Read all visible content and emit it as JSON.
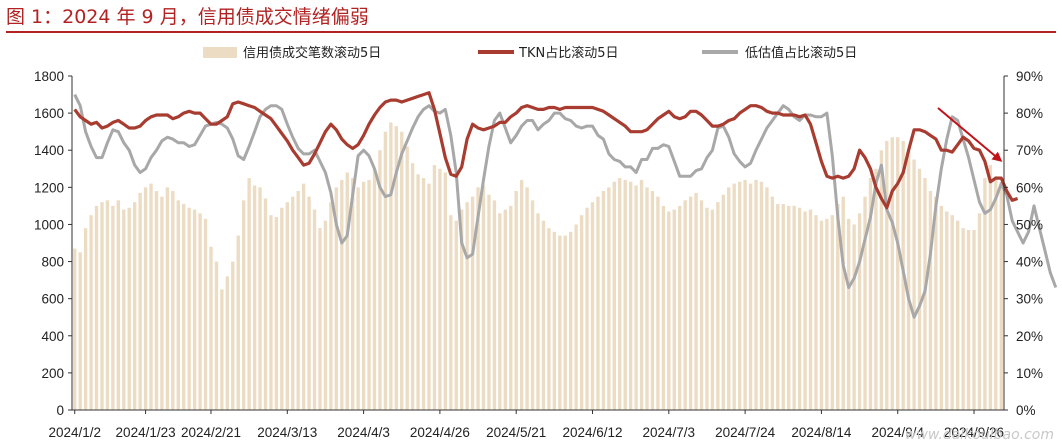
{
  "title": "图 1：2024 年 9 月，信用债成交情绪偏弱",
  "watermark": "www.dalkoulbao.com",
  "colors": {
    "bar": "#eddcc4",
    "tkn": "#a83c30",
    "low": "#a8a8a8",
    "title": "#b22222",
    "arrow": "#c0141a"
  },
  "chart_data": {
    "type": "bar+line",
    "title": "图 1：2024 年 9 月，信用债成交情绪偏弱",
    "legend": {
      "placement": "top",
      "entries": [
        "信用债成交笔数滚动5日",
        "TKN占比滚动5日",
        "低估值占比滚动5日"
      ]
    },
    "x_tick_labels": [
      "2024/1/2",
      "2024/1/23",
      "2024/2/21",
      "2024/3/13",
      "2024/4/3",
      "2024/4/26",
      "2024/5/21",
      "2024/6/12",
      "2024/7/3",
      "2024/7/24",
      "2024/8/14",
      "2024/9/4",
      "2024/9/26"
    ],
    "x_tick_index": [
      0,
      13,
      25,
      39,
      53,
      67,
      81,
      95,
      109,
      123,
      137,
      151,
      165
    ],
    "y_left": {
      "range": [
        0,
        1800
      ],
      "ticks": [
        "0",
        "200",
        "400",
        "600",
        "800",
        "1000",
        "1200",
        "1400",
        "1600",
        "1800"
      ]
    },
    "y_right": {
      "range": [
        0,
        90
      ],
      "ticks": [
        "0%",
        "10%",
        "20%",
        "30%",
        "40%",
        "50%",
        "60%",
        "70%",
        "80%",
        "90%"
      ]
    },
    "series": [
      {
        "name": "信用债成交笔数滚动5日",
        "type": "bar",
        "axis": "left",
        "values": [
          870,
          850,
          980,
          1050,
          1100,
          1120,
          1130,
          1100,
          1130,
          1080,
          1090,
          1120,
          1170,
          1200,
          1220,
          1180,
          1150,
          1200,
          1180,
          1130,
          1110,
          1090,
          1080,
          1060,
          1030,
          880,
          800,
          650,
          720,
          800,
          940,
          1130,
          1250,
          1210,
          1200,
          1140,
          1050,
          1040,
          1090,
          1120,
          1150,
          1180,
          1220,
          1150,
          1080,
          980,
          1020,
          1120,
          1200,
          1240,
          1280,
          1250,
          1200,
          1230,
          1240,
          1300,
          1400,
          1500,
          1550,
          1530,
          1500,
          1420,
          1330,
          1270,
          1250,
          1220,
          1320,
          1300,
          1280,
          1050,
          1020,
          1080,
          1120,
          1150,
          1200,
          1210,
          1160,
          1130,
          1060,
          1080,
          1100,
          1180,
          1240,
          1200,
          1130,
          1060,
          1020,
          980,
          960,
          940,
          940,
          960,
          1000,
          1050,
          1090,
          1120,
          1150,
          1180,
          1200,
          1230,
          1250,
          1240,
          1230,
          1210,
          1240,
          1200,
          1180,
          1150,
          1100,
          1070,
          1080,
          1100,
          1130,
          1150,
          1170,
          1130,
          1090,
          1080,
          1120,
          1160,
          1200,
          1220,
          1230,
          1240,
          1220,
          1240,
          1230,
          1200,
          1150,
          1110,
          1110,
          1100,
          1100,
          1090,
          1070,
          1080,
          1050,
          1020,
          1030,
          1050,
          1110,
          1150,
          1030,
          1000,
          1060,
          1150,
          1250,
          1300,
          1400,
          1450,
          1470,
          1470,
          1450,
          1400,
          1350,
          1300,
          1250,
          1180,
          1150,
          1100,
          1070,
          1050,
          1020,
          980,
          970,
          970,
          1060,
          1250,
          1320,
          1260,
          1230
        ]
      },
      {
        "name": "TKN占比滚动5日",
        "type": "line",
        "axis": "right",
        "values": [
          81,
          79,
          78,
          77,
          77.5,
          76,
          76.5,
          77.5,
          78,
          77,
          76,
          76,
          76.5,
          78,
          79,
          79.5,
          79.5,
          79.5,
          78.5,
          79,
          80,
          80.5,
          80,
          80,
          78.5,
          77,
          77,
          78,
          79,
          82.5,
          83,
          82.5,
          82,
          81.5,
          80.5,
          79.5,
          78.5,
          76.5,
          74.5,
          72.5,
          70,
          68,
          66,
          66.5,
          69,
          72,
          75,
          77,
          75.5,
          73,
          71.5,
          70.5,
          71.5,
          74,
          77,
          79.5,
          81.5,
          83,
          83.5,
          83.5,
          83,
          83.5,
          84,
          84.5,
          85,
          85.5,
          81,
          74.5,
          68,
          63.5,
          63,
          65.5,
          73,
          77,
          76,
          75.5,
          76,
          76.5,
          77.5,
          77.5,
          79,
          80,
          81.5,
          82,
          81.5,
          81,
          81,
          81.5,
          81.5,
          81,
          81.5,
          81.5,
          81.5,
          81.5,
          81.5,
          81.5,
          81,
          80.5,
          79.5,
          78.5,
          77.5,
          76.5,
          75,
          75,
          75,
          75.5,
          77,
          78.5,
          79.5,
          80.5,
          79,
          78.5,
          79,
          80.5,
          80.5,
          79.5,
          78,
          76.5,
          76.5,
          77,
          78,
          78.5,
          80,
          81,
          82,
          82,
          81.5,
          80.5,
          80,
          80,
          79.5,
          79.5,
          79.5,
          79,
          79.5,
          77,
          72,
          67,
          63,
          62.5,
          63,
          62.5,
          63,
          65,
          70,
          68,
          65,
          60,
          57,
          54.5,
          59,
          61,
          64,
          70,
          75.5,
          75.5,
          75,
          74,
          73,
          70,
          70,
          69.5,
          71.5,
          73.5,
          72.5,
          70.5,
          70,
          67,
          61.5,
          62.5,
          62.5,
          59,
          56.5,
          57
        ]
      },
      {
        "name": "低估值占比滚动5日",
        "type": "line",
        "axis": "right",
        "values": [
          85,
          82,
          75,
          71,
          68,
          68,
          72,
          75.5,
          75,
          72,
          70,
          66,
          64,
          65,
          68,
          70,
          72.5,
          73.5,
          73,
          72,
          72,
          71,
          71.5,
          74,
          76.5,
          77,
          77.5,
          77,
          76,
          73,
          68.5,
          67.5,
          71,
          75,
          79,
          81,
          82,
          82,
          81,
          77,
          73.5,
          70.5,
          69,
          69,
          70,
          67,
          64,
          58.5,
          50,
          45,
          47,
          58,
          68.5,
          70,
          68.5,
          65,
          60,
          57.5,
          58,
          64,
          69,
          72.5,
          76,
          79,
          81,
          82,
          80.5,
          80,
          81,
          74,
          64,
          45,
          41,
          42,
          52,
          62,
          71,
          78,
          80,
          76,
          72,
          74,
          76.5,
          78,
          78,
          75.5,
          77,
          78,
          80,
          80,
          78.5,
          78,
          76.5,
          76,
          76.5,
          76.5,
          74,
          73,
          69,
          67.5,
          67,
          65.5,
          65.5,
          64,
          67.5,
          67.5,
          70.5,
          70.5,
          71.5,
          71,
          67,
          63,
          63,
          63,
          64.5,
          65,
          68,
          70,
          76,
          76.5,
          73.5,
          69,
          67,
          65.5,
          66.5,
          70,
          73,
          76,
          78,
          80,
          82,
          81,
          79,
          78,
          79.5,
          79.5,
          79,
          79,
          80,
          68.5,
          52,
          39,
          33,
          35.5,
          40,
          46,
          52,
          61,
          66,
          54,
          50.5,
          45,
          37.5,
          30,
          25,
          28,
          32,
          42,
          55,
          65,
          73,
          79,
          78,
          73,
          68,
          62,
          56,
          53,
          54,
          57,
          61,
          58,
          51,
          48,
          45,
          48,
          55,
          49,
          43,
          37,
          33
        ]
      }
    ],
    "annotations": [
      {
        "type": "arrow",
        "direction": "down-right"
      }
    ]
  }
}
